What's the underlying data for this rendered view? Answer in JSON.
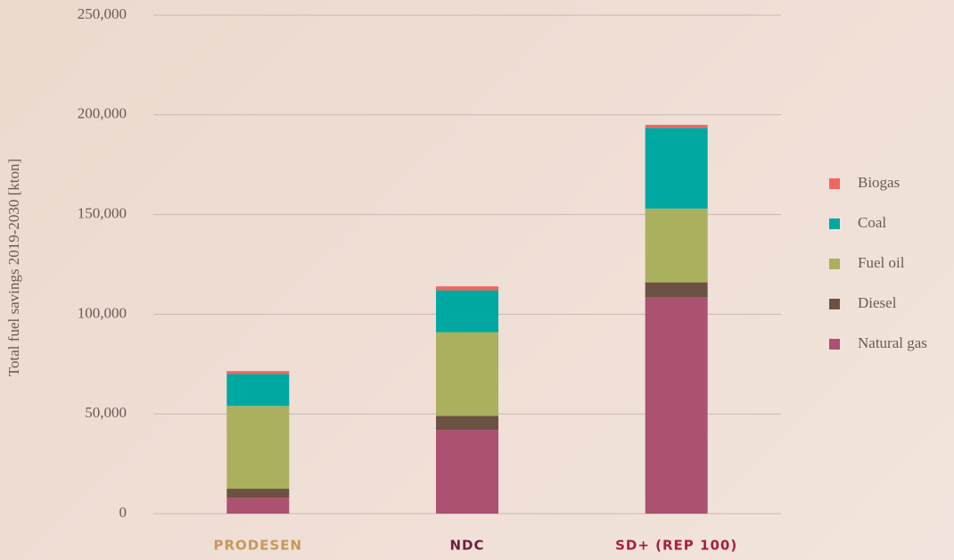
{
  "chart_data": {
    "type": "stacked_bar",
    "y_axis_label": "Total fuel savings 2019-2030 [kton]",
    "categories": [
      "PRODESEN",
      "NDC",
      "SD+ (REP 100)"
    ],
    "category_colors": [
      "#c49a5c",
      "#6e1f3c",
      "#a8203e"
    ],
    "series": [
      {
        "name": "Natural gas",
        "color": "#ad5170",
        "values": [
          8000,
          42000,
          108500
        ]
      },
      {
        "name": "Diesel",
        "color": "#6b5242",
        "values": [
          4500,
          7000,
          7500
        ]
      },
      {
        "name": "Fuel oil",
        "color": "#abb05e",
        "values": [
          41500,
          42000,
          37000
        ]
      },
      {
        "name": "Coal",
        "color": "#00a8a2",
        "values": [
          16000,
          21000,
          40500
        ]
      },
      {
        "name": "Biogas",
        "color": "#f0675f",
        "values": [
          1500,
          2000,
          1500
        ]
      }
    ],
    "ylim": [
      0,
      250000
    ],
    "yticks": [
      0,
      {
        "value": 50000,
        "label": "50,000"
      },
      {
        "value": 100000,
        "label": "100,000"
      },
      {
        "value": 150000,
        "label": "150,000"
      },
      {
        "value": 200000,
        "label": "200,000"
      },
      {
        "value": 250000,
        "label": "250,000"
      }
    ],
    "grid": true,
    "legend": "right"
  }
}
